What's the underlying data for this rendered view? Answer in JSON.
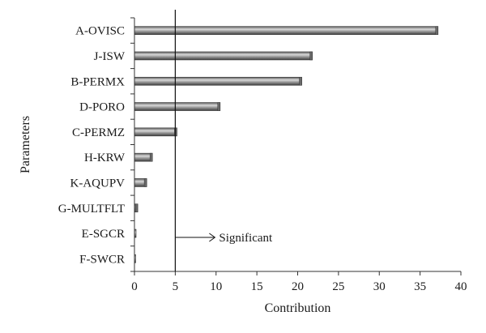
{
  "chart_data": {
    "type": "bar",
    "orientation": "horizontal",
    "categories": [
      "A-OVISC",
      "J-ISW",
      "B-PERMX",
      "D-PORO",
      "C-PERMZ",
      "H-KRW",
      "K-AQUPV",
      "G-MULTFLT",
      "E-SGCR",
      "F-SWCR"
    ],
    "values": [
      37.2,
      21.8,
      20.5,
      10.5,
      5.2,
      2.2,
      1.5,
      0.4,
      0.2,
      0.1
    ],
    "xlabel": "Contribution",
    "ylabel": "Parameters",
    "xlim": [
      0,
      40
    ],
    "xticks": [
      0,
      5,
      10,
      15,
      20,
      25,
      30,
      35,
      40
    ],
    "grid": false,
    "reference_line": {
      "x": 5,
      "label": "Significant"
    },
    "colors": {
      "bar_light": "#d6d6d6",
      "bar_mid": "#8a8a8a",
      "bar_dark": "#4a4a4a",
      "axis": "#333333"
    }
  }
}
